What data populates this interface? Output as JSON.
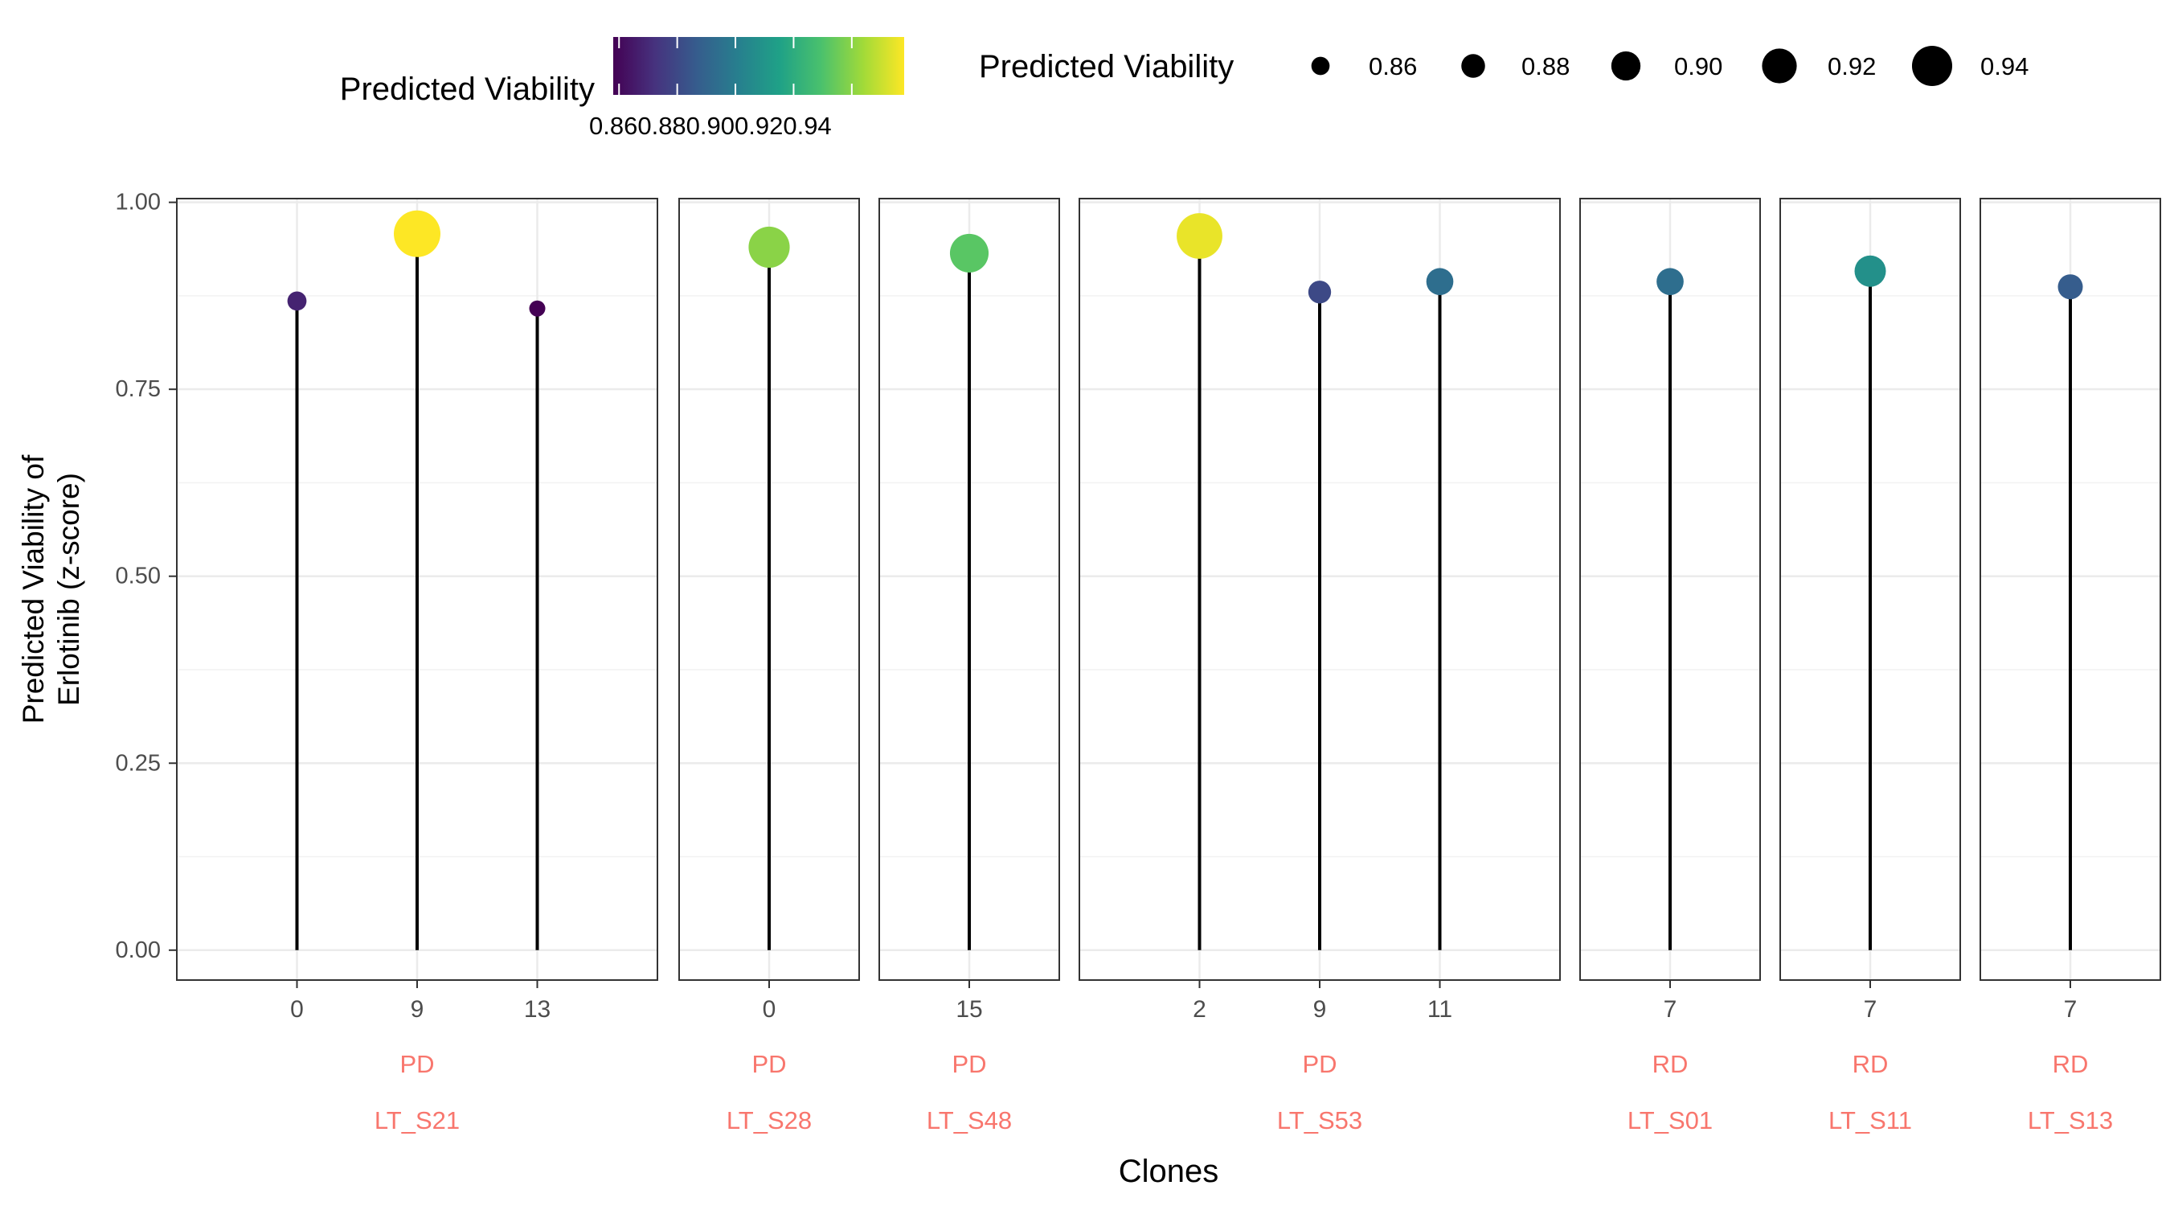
{
  "chart_data": {
    "type": "lollipop",
    "xlabel": "Clones",
    "ylabel_lines": [
      "Predicted Viability of",
      "Erlotinib (z-score)"
    ],
    "ylim": [
      -0.04,
      1.005
    ],
    "yticks": [
      0,
      0.25,
      0.5,
      0.75,
      1.0
    ],
    "ytick_labels": [
      "0.00",
      "0.25",
      "0.50",
      "0.75",
      "1.00"
    ],
    "grid": true,
    "legend_position": "top",
    "color_scale": {
      "name": "viridis",
      "min": 0.858,
      "max": 0.958,
      "stops": [
        "#440154",
        "#46327e",
        "#365c8d",
        "#277f8e",
        "#1fa187",
        "#4ac16d",
        "#a0da39",
        "#fde725"
      ]
    },
    "size_range": [
      0.858,
      0.958
    ],
    "panels": [
      {
        "sample": "LT_S21",
        "response": "PD",
        "clones": [
          {
            "clone": "0",
            "value": 0.868
          },
          {
            "clone": "9",
            "value": 0.958
          },
          {
            "clone": "13",
            "value": 0.858
          }
        ]
      },
      {
        "sample": "LT_S28",
        "response": "PD",
        "clones": [
          {
            "clone": "0",
            "value": 0.94
          }
        ]
      },
      {
        "sample": "LT_S48",
        "response": "PD",
        "clones": [
          {
            "clone": "15",
            "value": 0.932
          }
        ]
      },
      {
        "sample": "LT_S53",
        "response": "PD",
        "clones": [
          {
            "clone": "2",
            "value": 0.955
          },
          {
            "clone": "9",
            "value": 0.88
          },
          {
            "clone": "11",
            "value": 0.894
          }
        ]
      },
      {
        "sample": "LT_S01",
        "response": "RD",
        "clones": [
          {
            "clone": "7",
            "value": 0.894
          }
        ]
      },
      {
        "sample": "LT_S11",
        "response": "RD",
        "clones": [
          {
            "clone": "7",
            "value": 0.908
          }
        ]
      },
      {
        "sample": "LT_S13",
        "response": "RD",
        "clones": [
          {
            "clone": "7",
            "value": 0.887
          }
        ]
      }
    ],
    "legend_color": {
      "title": "Predicted Viability",
      "tick_values": [
        0.86,
        0.88,
        0.9,
        0.92,
        0.94
      ],
      "tick_text": "0.860.880.900.920.94"
    },
    "legend_size": {
      "title": "Predicted Viability",
      "entries": [
        {
          "value": 0.86,
          "label": "0.86"
        },
        {
          "value": 0.88,
          "label": "0.88"
        },
        {
          "value": 0.9,
          "label": "0.90"
        },
        {
          "value": 0.92,
          "label": "0.92"
        },
        {
          "value": 0.94,
          "label": "0.94"
        }
      ]
    },
    "colors": {
      "strip_text": "#f8766d",
      "stem": "#000000",
      "panel_border": "#333333",
      "grid_major": "#ebebeb",
      "axis_text": "#4d4d4d"
    }
  }
}
